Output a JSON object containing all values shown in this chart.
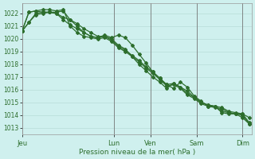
{
  "title": "",
  "xlabel": "Pression niveau de la mer( hPa )",
  "ylabel": "",
  "bg_color": "#cff0ee",
  "grid_color": "#b8ddd8",
  "line_color": "#2d6e2d",
  "ylim": [
    1012.5,
    1022.8
  ],
  "yticks": [
    1013,
    1014,
    1015,
    1016,
    1017,
    1018,
    1019,
    1020,
    1021,
    1022
  ],
  "day_labels": [
    "Jeu",
    "Lun",
    "Ven",
    "Sam",
    "Dim"
  ],
  "day_positions": [
    0,
    40,
    56,
    76,
    96
  ],
  "xlim": [
    0,
    100
  ],
  "series1_x": [
    0,
    3,
    6,
    9,
    12,
    15,
    18,
    21,
    24,
    27,
    30,
    33,
    36,
    39,
    42,
    45,
    48,
    51,
    54,
    57,
    60,
    63,
    66,
    69,
    72,
    75,
    78,
    81,
    84,
    87,
    90,
    93,
    96,
    99
  ],
  "series1_y": [
    1020.6,
    1021.3,
    1022.0,
    1022.1,
    1022.1,
    1022.0,
    1021.5,
    1021.1,
    1020.8,
    1020.5,
    1020.2,
    1020.1,
    1020.3,
    1020.1,
    1020.3,
    1020.1,
    1019.5,
    1018.8,
    1018.1,
    1017.4,
    1016.9,
    1016.4,
    1016.1,
    1016.6,
    1016.2,
    1015.5,
    1015.1,
    1014.7,
    1014.7,
    1014.2,
    1014.1,
    1014.1,
    1014.1,
    1013.4
  ],
  "series2_x": [
    0,
    3,
    6,
    9,
    12,
    15,
    18,
    21,
    24,
    27,
    30,
    33,
    36,
    39,
    42,
    45,
    48,
    51,
    54,
    57,
    60,
    63,
    66,
    69,
    72,
    75,
    78,
    81,
    84,
    87,
    90,
    93,
    96,
    99
  ],
  "series2_y": [
    1020.6,
    1022.1,
    1022.2,
    1022.1,
    1022.1,
    1022.0,
    1021.7,
    1021.5,
    1021.2,
    1020.8,
    1020.5,
    1020.2,
    1020.2,
    1020.0,
    1019.5,
    1019.2,
    1018.6,
    1018.0,
    1017.5,
    1017.0,
    1016.6,
    1016.1,
    1016.5,
    1016.2,
    1015.9,
    1015.4,
    1015.0,
    1014.8,
    1014.7,
    1014.3,
    1014.2,
    1014.1,
    1013.8,
    1013.3
  ],
  "series3_x": [
    0,
    3,
    6,
    9,
    12,
    15,
    18,
    21,
    24,
    27,
    30,
    33,
    36,
    39,
    42,
    45,
    48,
    51,
    54,
    57,
    60,
    63,
    66,
    69,
    72,
    75,
    78,
    81,
    84,
    87,
    90,
    93,
    96,
    99
  ],
  "series3_y": [
    1020.6,
    1022.1,
    1022.2,
    1022.3,
    1022.3,
    1022.2,
    1022.3,
    1021.0,
    1020.5,
    1020.2,
    1020.1,
    1020.0,
    1020.1,
    1019.8,
    1019.3,
    1019.0,
    1018.6,
    1018.2,
    1017.7,
    1017.3,
    1016.8,
    1016.3,
    1016.4,
    1016.1,
    1015.6,
    1015.3,
    1014.9,
    1014.7,
    1014.6,
    1014.5,
    1014.2,
    1014.1,
    1014.0,
    1013.3
  ],
  "series4_x": [
    0,
    3,
    6,
    9,
    12,
    15,
    18,
    21,
    24,
    27,
    30,
    33,
    36,
    39,
    42,
    45,
    48,
    51,
    54,
    57,
    60,
    63,
    66,
    69,
    72,
    75,
    78,
    81,
    84,
    87,
    90,
    93,
    96,
    99
  ],
  "series4_y": [
    1020.6,
    1021.3,
    1021.9,
    1022.0,
    1022.1,
    1022.1,
    1022.2,
    1021.5,
    1021.0,
    1020.5,
    1020.2,
    1020.1,
    1020.2,
    1019.9,
    1019.4,
    1019.1,
    1018.7,
    1018.3,
    1017.8,
    1017.4,
    1016.9,
    1016.4,
    1016.5,
    1016.2,
    1015.7,
    1015.4,
    1015.0,
    1014.8,
    1014.7,
    1014.6,
    1014.3,
    1014.2,
    1014.1,
    1013.8
  ]
}
